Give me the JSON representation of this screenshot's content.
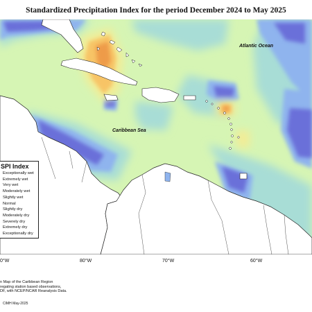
{
  "title": "Standardized Precipitation Index for the period December 2024 to May 2025",
  "ocean_labels": {
    "atlantic": "Atlantic Ocean",
    "caribbean": "Caribbean Sea"
  },
  "legend": {
    "title": "SPI Index",
    "items": [
      {
        "label": "Exceptionally wet"
      },
      {
        "label": "Extremely wet"
      },
      {
        "label": "Very wet"
      },
      {
        "label": "Moderately wet"
      },
      {
        "label": "Slightly wet"
      },
      {
        "label": "Normal"
      },
      {
        "label": "Slightly dry"
      },
      {
        "label": "Moderately dry"
      },
      {
        "label": "Severely dry"
      },
      {
        "label": "Extremely dry"
      },
      {
        "label": "Exceptionally dry"
      }
    ]
  },
  "longitude_labels": {
    "w90": "0°W",
    "w80": "80°W",
    "w70": "70°W",
    "w60": "60°W"
  },
  "footer_lines": [
    "n Map of the Caribbean Region",
    "regating station based observations,",
    "DF, with NCEP/NCAR Reanalysis Data."
  ],
  "credit": "CIMH May-2025",
  "colors": {
    "normal": "#d6f5b4",
    "slightly_wet": "#a8ddd6",
    "moderately_wet": "#8fb4ee",
    "very_wet": "#6b6fd9",
    "slightly_dry": "#f3ec95",
    "moderately_dry": "#f7c466",
    "severely_dry": "#ee9b4a",
    "land": "#ffffff",
    "outline": "#222222"
  }
}
